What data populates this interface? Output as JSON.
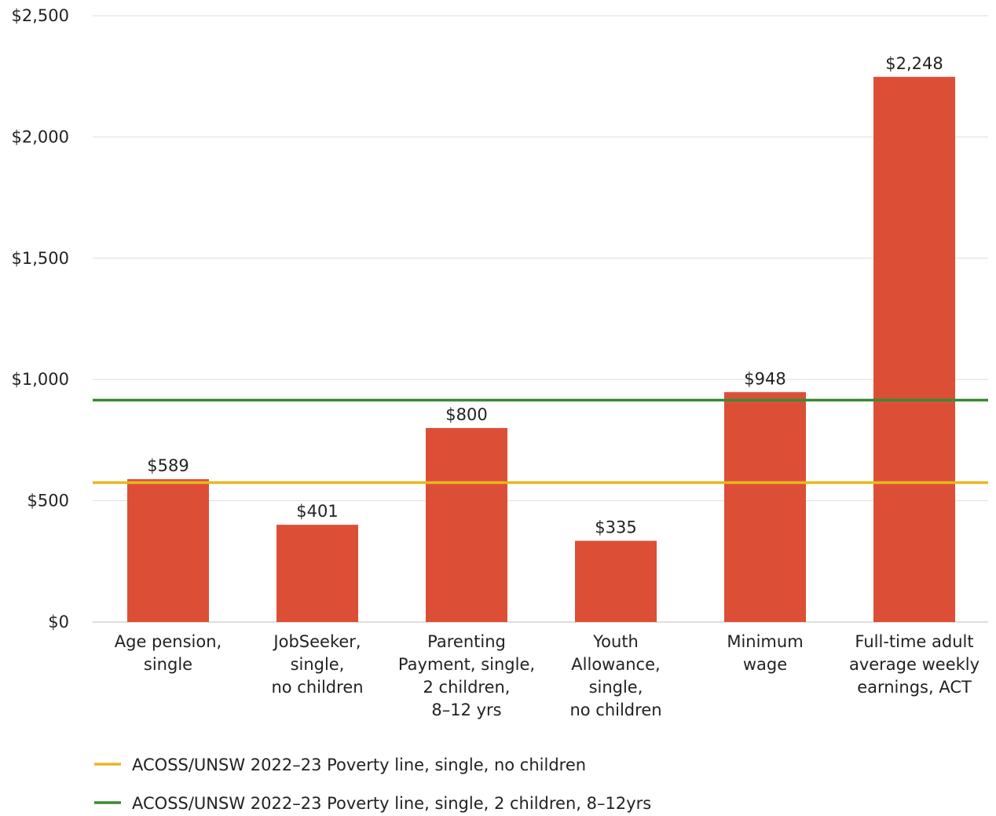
{
  "chart_data": {
    "type": "bar",
    "categories": [
      [
        "Age pension,",
        "single"
      ],
      [
        "JobSeeker,",
        "single,",
        "no children"
      ],
      [
        "Parenting",
        "Payment, single,",
        "2 children,",
        "8–12 yrs"
      ],
      [
        "Youth",
        "Allowance,",
        "single,",
        "no children"
      ],
      [
        "Minimum",
        "wage"
      ],
      [
        "Full-time adult",
        "average weekly",
        "earnings, ACT"
      ]
    ],
    "values": [
      589,
      401,
      800,
      335,
      948,
      2248
    ],
    "value_labels": [
      "$589",
      "$401",
      "$800",
      "$335",
      "$948",
      "$2,248"
    ],
    "ylim": [
      0,
      2500
    ],
    "yticks": [
      0,
      500,
      1000,
      1500,
      2000,
      2500
    ],
    "ytick_labels": [
      "$0",
      "$500",
      "$1,000",
      "$1,500",
      "$2,000",
      "$2,500"
    ],
    "grid": true,
    "bar_color": "#dc4f36",
    "reference_lines": [
      {
        "name": "ACOSS/UNSW 2022–23 Poverty line, single, no children",
        "value": 575,
        "color": "#e6b821"
      },
      {
        "name": "ACOSS/UNSW 2022–23 Poverty line, single, 2 children, 8–12yrs",
        "value": 915,
        "color": "#3a8a34"
      }
    ],
    "legend_position": "bottom-left",
    "title": "",
    "xlabel": "",
    "ylabel": ""
  }
}
